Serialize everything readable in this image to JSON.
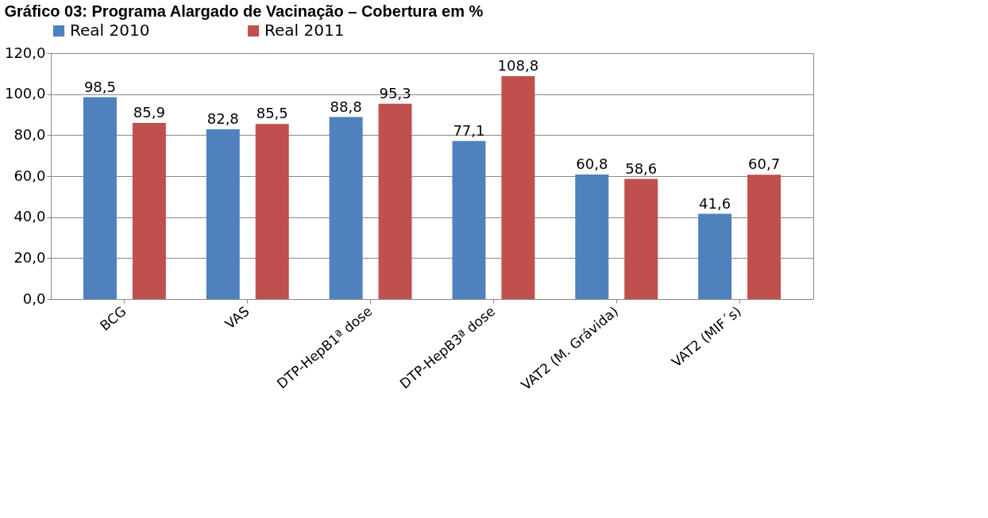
{
  "chart_data": {
    "type": "bar",
    "title": "Gráfico 03: Programa Alargado de Vacinação – Cobertura em %",
    "categories": [
      "BCG",
      "VAS",
      "DTP-HepB1ª dose",
      "DTP-HepB3ª dose",
      "VAT2 (M. Grávida)",
      "VAT2 (MIF´s)"
    ],
    "series": [
      {
        "name": "Real 2010",
        "color": "#4f81bd",
        "values": [
          98.5,
          82.8,
          88.8,
          77.1,
          60.8,
          41.6
        ],
        "value_labels": [
          "98,5",
          "82,8",
          "88,8",
          "77,1",
          "60,8",
          "41,6"
        ]
      },
      {
        "name": "Real 2011",
        "color": "#c0504d",
        "values": [
          85.9,
          85.5,
          95.3,
          108.8,
          58.6,
          60.7
        ],
        "value_labels": [
          "85,9",
          "85,5",
          "95,3",
          "108,8",
          "58,6",
          "60,7"
        ]
      }
    ],
    "ylim": [
      0,
      120
    ],
    "yticks": [
      {
        "value": 0,
        "label": "0,0"
      },
      {
        "value": 20,
        "label": "20,0"
      },
      {
        "value": 40,
        "label": "40,0"
      },
      {
        "value": 60,
        "label": "60,0"
      },
      {
        "value": 80,
        "label": "80,0"
      },
      {
        "value": 100,
        "label": "100,0"
      },
      {
        "value": 120,
        "label": "120,0"
      }
    ],
    "grid": "y",
    "legend": "top"
  }
}
